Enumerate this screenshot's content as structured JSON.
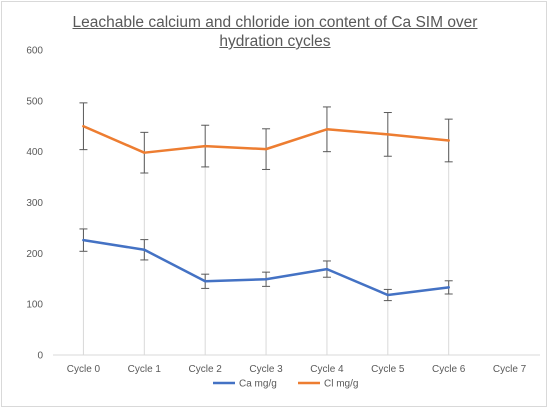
{
  "chart_data": {
    "type": "line",
    "title": "Leachable calcium and chloride ion content of Ca SIM over hydration cycles",
    "xlabel": "",
    "ylabel": "",
    "categories": [
      "Cycle 0",
      "Cycle 1",
      "Cycle 2",
      "Cycle 3",
      "Cycle 4",
      "Cycle 5",
      "Cycle 6",
      "Cycle 7"
    ],
    "ylim": [
      0,
      600
    ],
    "yticks": [
      "0",
      "100",
      "200",
      "300",
      "400",
      "500",
      "600"
    ],
    "grid": false,
    "legend_position": "bottom",
    "series": [
      {
        "name": "Ca mg/g",
        "color": "#4472C4",
        "values": [
          226,
          207,
          145,
          149,
          169,
          118,
          133,
          null
        ],
        "error": [
          22,
          20,
          14,
          14,
          16,
          11,
          13,
          null
        ]
      },
      {
        "name": "Cl mg/g",
        "color": "#ED7D31",
        "values": [
          450,
          398,
          411,
          405,
          444,
          434,
          422,
          null
        ],
        "error": [
          46,
          40,
          41,
          40,
          44,
          43,
          42,
          null
        ]
      }
    ]
  }
}
